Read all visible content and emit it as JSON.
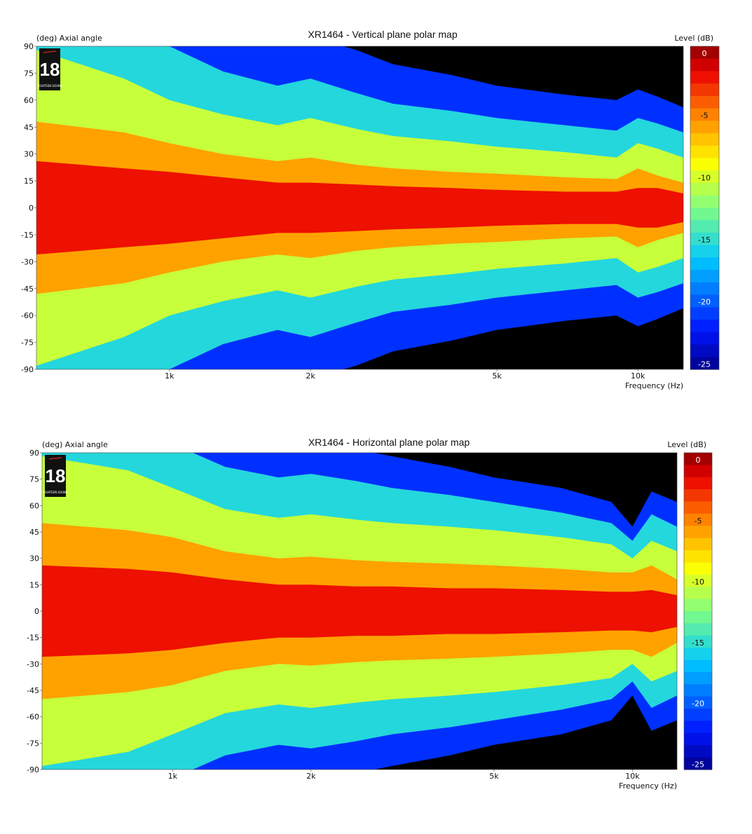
{
  "chart_data": [
    {
      "type": "heatmap",
      "title": "XR1464 - Vertical plane polar map",
      "ylabel_unit": "(deg)",
      "ylabel": "Axial angle",
      "xlabel": "Frequency (Hz)",
      "colorbar_label": "Level (dB)",
      "x_scale": "log",
      "xlim": [
        520,
        12500
      ],
      "ylim": [
        -90,
        90
      ],
      "x_ticks": [
        1000,
        2000,
        5000,
        10000
      ],
      "x_tick_labels": [
        "1k",
        "2k",
        "5k",
        "10k"
      ],
      "y_ticks": [
        90,
        75,
        60,
        45,
        30,
        15,
        0,
        -15,
        -30,
        -45,
        -60,
        -75,
        -90
      ],
      "colorbar_range": [
        -26,
        0
      ],
      "colorbar_ticks": [
        0,
        -5,
        -10,
        -15,
        -20,
        -25
      ],
      "logo_text": "18",
      "logo_subtext": "EIGHTEEN SOUND",
      "contours_half_angle_deg": {
        "frequencies_hz": [
          520,
          800,
          1000,
          1300,
          1700,
          2000,
          2500,
          3000,
          4000,
          5000,
          7000,
          9000,
          10000,
          11000,
          12500
        ],
        "minus_3db": [
          26,
          22,
          20,
          17,
          14,
          14,
          13,
          12,
          11,
          10,
          9,
          9,
          11,
          11,
          8
        ],
        "minus_6db": [
          48,
          42,
          36,
          30,
          26,
          28,
          24,
          22,
          20,
          19,
          17,
          16,
          22,
          18,
          14
        ],
        "minus_10db": [
          88,
          72,
          60,
          52,
          46,
          50,
          44,
          40,
          37,
          34,
          31,
          28,
          36,
          33,
          28
        ],
        "minus_15db": [
          95,
          95,
          90,
          76,
          68,
          72,
          64,
          58,
          54,
          50,
          46,
          43,
          50,
          47,
          42
        ],
        "minus_20db": [
          95,
          95,
          95,
          95,
          95,
          95,
          88,
          80,
          74,
          68,
          63,
          60,
          66,
          62,
          56
        ]
      }
    },
    {
      "type": "heatmap",
      "title": "XR1464 - Horizontal plane polar map",
      "ylabel_unit": "(deg)",
      "ylabel": "Axial angle",
      "xlabel": "Frequency (Hz)",
      "colorbar_label": "Level (dB)",
      "x_scale": "log",
      "xlim": [
        520,
        12500
      ],
      "ylim": [
        -90,
        90
      ],
      "x_ticks": [
        1000,
        2000,
        5000,
        10000
      ],
      "x_tick_labels": [
        "1k",
        "2k",
        "5k",
        "10k"
      ],
      "y_ticks": [
        90,
        75,
        60,
        45,
        30,
        15,
        0,
        -15,
        -30,
        -45,
        -60,
        -75,
        -90
      ],
      "colorbar_range": [
        -26,
        0
      ],
      "colorbar_ticks": [
        0,
        -5,
        -10,
        -15,
        -20,
        -25
      ],
      "logo_text": "18",
      "logo_subtext": "EIGHTEEN SOUND",
      "contours_half_angle_deg": {
        "frequencies_hz": [
          520,
          800,
          1000,
          1300,
          1700,
          2000,
          2500,
          3000,
          4000,
          5000,
          7000,
          9000,
          10000,
          11000,
          12500
        ],
        "minus_3db": [
          26,
          24,
          22,
          18,
          15,
          15,
          14,
          14,
          13,
          13,
          12,
          11,
          11,
          12,
          9
        ],
        "minus_6db": [
          50,
          46,
          42,
          34,
          30,
          31,
          29,
          28,
          27,
          26,
          24,
          22,
          22,
          26,
          18
        ],
        "minus_10db": [
          88,
          80,
          70,
          58,
          53,
          55,
          52,
          50,
          48,
          46,
          42,
          38,
          30,
          40,
          34
        ],
        "minus_15db": [
          95,
          95,
          95,
          82,
          76,
          78,
          74,
          70,
          66,
          62,
          56,
          50,
          40,
          55,
          48
        ],
        "minus_20db": [
          95,
          95,
          95,
          95,
          95,
          95,
          92,
          88,
          82,
          76,
          70,
          62,
          48,
          68,
          62
        ]
      }
    }
  ]
}
